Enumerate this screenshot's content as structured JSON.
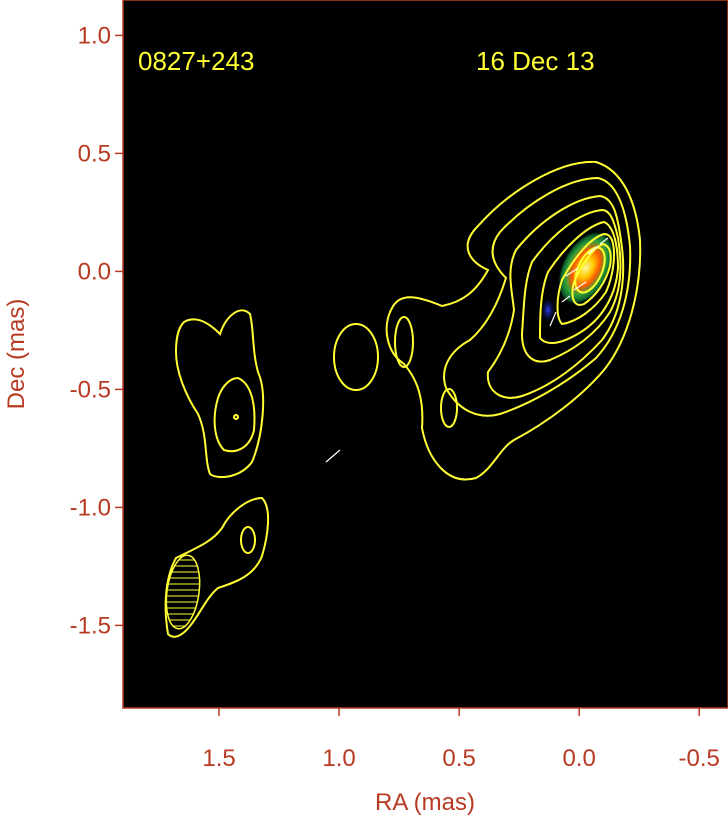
{
  "chart_data": {
    "type": "contour",
    "source_label": "0827+243",
    "epoch_label": "16 Dec 13",
    "xlabel": "RA (mas)",
    "ylabel": "Dec (mas)",
    "xlim": [
      1.9,
      -0.62
    ],
    "ylim": [
      -1.85,
      1.15
    ],
    "x_ticks": [
      {
        "value": 1.5,
        "label": "1.5"
      },
      {
        "value": 1.0,
        "label": "1.0"
      },
      {
        "value": 0.5,
        "label": "0.5"
      },
      {
        "value": 0.0,
        "label": "0.0"
      },
      {
        "value": -0.5,
        "label": "-0.5"
      }
    ],
    "y_ticks": [
      {
        "value": 1.0,
        "label": "1.0"
      },
      {
        "value": 0.5,
        "label": "0.5"
      },
      {
        "value": 0.0,
        "label": "0.0"
      },
      {
        "value": -0.5,
        "label": "-0.5"
      },
      {
        "value": -1.0,
        "label": "-1.0"
      },
      {
        "value": -1.5,
        "label": "-1.5"
      }
    ],
    "core_position": [
      0.0,
      0.0
    ],
    "beam": {
      "ra": 1.7,
      "dec": -1.34,
      "major_mas": 0.32,
      "minor_mas": 0.14,
      "pa_deg": 8
    },
    "colors": {
      "background": "#000000",
      "contours": "#ffff33",
      "axis_text": "#b83a22",
      "annotation": "#ffff33"
    }
  }
}
